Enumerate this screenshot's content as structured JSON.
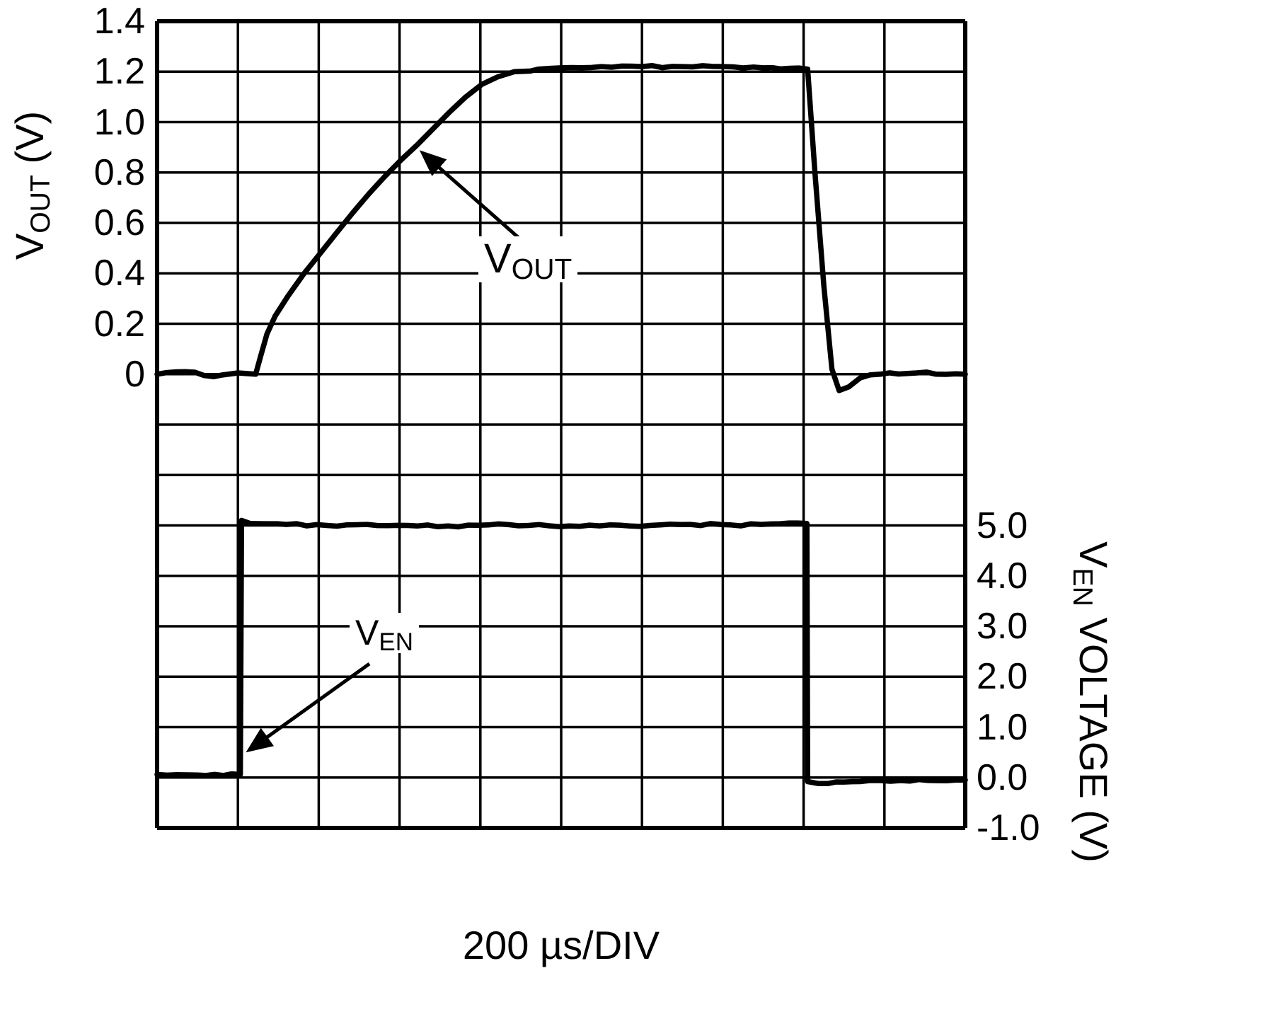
{
  "chart_data": {
    "type": "line",
    "title": "",
    "xlabel": "200 µs/DIV",
    "x_unit_per_div": "200 µs",
    "x_divisions": 10,
    "y_divisions": 16,
    "background": "#ffffff",
    "grid_color": "#000000",
    "trace_color": "#000000",
    "grid": true,
    "axes": {
      "left": {
        "label": "VOUT (V)",
        "label_parts": {
          "main": "V",
          "sub": "OUT",
          "rest": " (V)"
        },
        "ticks": [
          "1.4",
          "1.2",
          "1.0",
          "0.8",
          "0.6",
          "0.4",
          "0.2",
          "0"
        ],
        "tick_rows": [
          0,
          1,
          2,
          3,
          4,
          5,
          6,
          7
        ],
        "volts_per_div": 0.2,
        "zero_row": 7,
        "range": [
          -1.8,
          1.4
        ]
      },
      "right": {
        "label": "VEN VOLTAGE (V)",
        "label_parts": {
          "main": "V",
          "sub": "EN",
          "rest": " VOLTAGE (V)"
        },
        "ticks": [
          "5.0",
          "4.0",
          "3.0",
          "2.0",
          "1.0",
          "0.0",
          "-1.0"
        ],
        "tick_rows": [
          10,
          11,
          12,
          13,
          14,
          15,
          16
        ],
        "volts_per_div": 1.0,
        "zero_row": 15,
        "range": [
          -1.0,
          15.0
        ]
      }
    },
    "series": [
      {
        "name": "VOUT",
        "axis": "left",
        "x_unit": "divisions (200 µs each)",
        "y_unit": "V",
        "points": [
          [
            0,
            0
          ],
          [
            0.35,
            0.01
          ],
          [
            0.7,
            -0.01
          ],
          [
            1.0,
            0.005
          ],
          [
            1.22,
            0
          ],
          [
            1.28,
            0.07
          ],
          [
            1.36,
            0.16
          ],
          [
            1.46,
            0.23
          ],
          [
            1.62,
            0.31
          ],
          [
            1.82,
            0.4
          ],
          [
            2.02,
            0.48
          ],
          [
            2.22,
            0.56
          ],
          [
            2.42,
            0.64
          ],
          [
            2.62,
            0.715
          ],
          [
            2.82,
            0.785
          ],
          [
            3.02,
            0.85
          ],
          [
            3.22,
            0.91
          ],
          [
            3.42,
            0.975
          ],
          [
            3.62,
            1.04
          ],
          [
            3.82,
            1.1
          ],
          [
            4.02,
            1.15
          ],
          [
            4.22,
            1.18
          ],
          [
            4.42,
            1.2
          ],
          [
            4.72,
            1.21
          ],
          [
            5.0,
            1.215
          ],
          [
            5.5,
            1.22
          ],
          [
            6.0,
            1.22
          ],
          [
            6.5,
            1.22
          ],
          [
            7.0,
            1.22
          ],
          [
            7.5,
            1.215
          ],
          [
            8.05,
            1.21
          ],
          [
            8.14,
            0.8
          ],
          [
            8.25,
            0.35
          ],
          [
            8.35,
            0.02
          ],
          [
            8.44,
            -0.065
          ],
          [
            8.56,
            -0.05
          ],
          [
            8.7,
            -0.015
          ],
          [
            8.95,
            0
          ],
          [
            9.4,
            0.005
          ],
          [
            10,
            0
          ]
        ]
      },
      {
        "name": "VEN",
        "axis": "right",
        "x_unit": "divisions (200 µs each)",
        "y_unit": "V",
        "points": [
          [
            0,
            0.06
          ],
          [
            0.5,
            0.05
          ],
          [
            1.03,
            0.06
          ],
          [
            1.045,
            5.1
          ],
          [
            1.15,
            5.04
          ],
          [
            1.6,
            5.02
          ],
          [
            2.1,
            5.0
          ],
          [
            2.6,
            5.02
          ],
          [
            3.1,
            5.0
          ],
          [
            3.6,
            4.99
          ],
          [
            4.1,
            5.01
          ],
          [
            4.6,
            5.0
          ],
          [
            5.1,
            4.99
          ],
          [
            5.6,
            5.01
          ],
          [
            6.1,
            5.0
          ],
          [
            6.6,
            5.02
          ],
          [
            7.1,
            5.01
          ],
          [
            7.6,
            5.03
          ],
          [
            8.04,
            5.04
          ],
          [
            8.05,
            -0.08
          ],
          [
            8.3,
            -0.12
          ],
          [
            8.7,
            -0.08
          ],
          [
            9.2,
            -0.06
          ],
          [
            10,
            -0.05
          ]
        ]
      }
    ],
    "annotations": [
      {
        "id": "vout",
        "main": "V",
        "sub": "OUT",
        "points_to": "VOUT soft-start ramp"
      },
      {
        "id": "ven",
        "main": "V",
        "sub": "EN",
        "points_to": "VEN rising edge"
      }
    ]
  }
}
